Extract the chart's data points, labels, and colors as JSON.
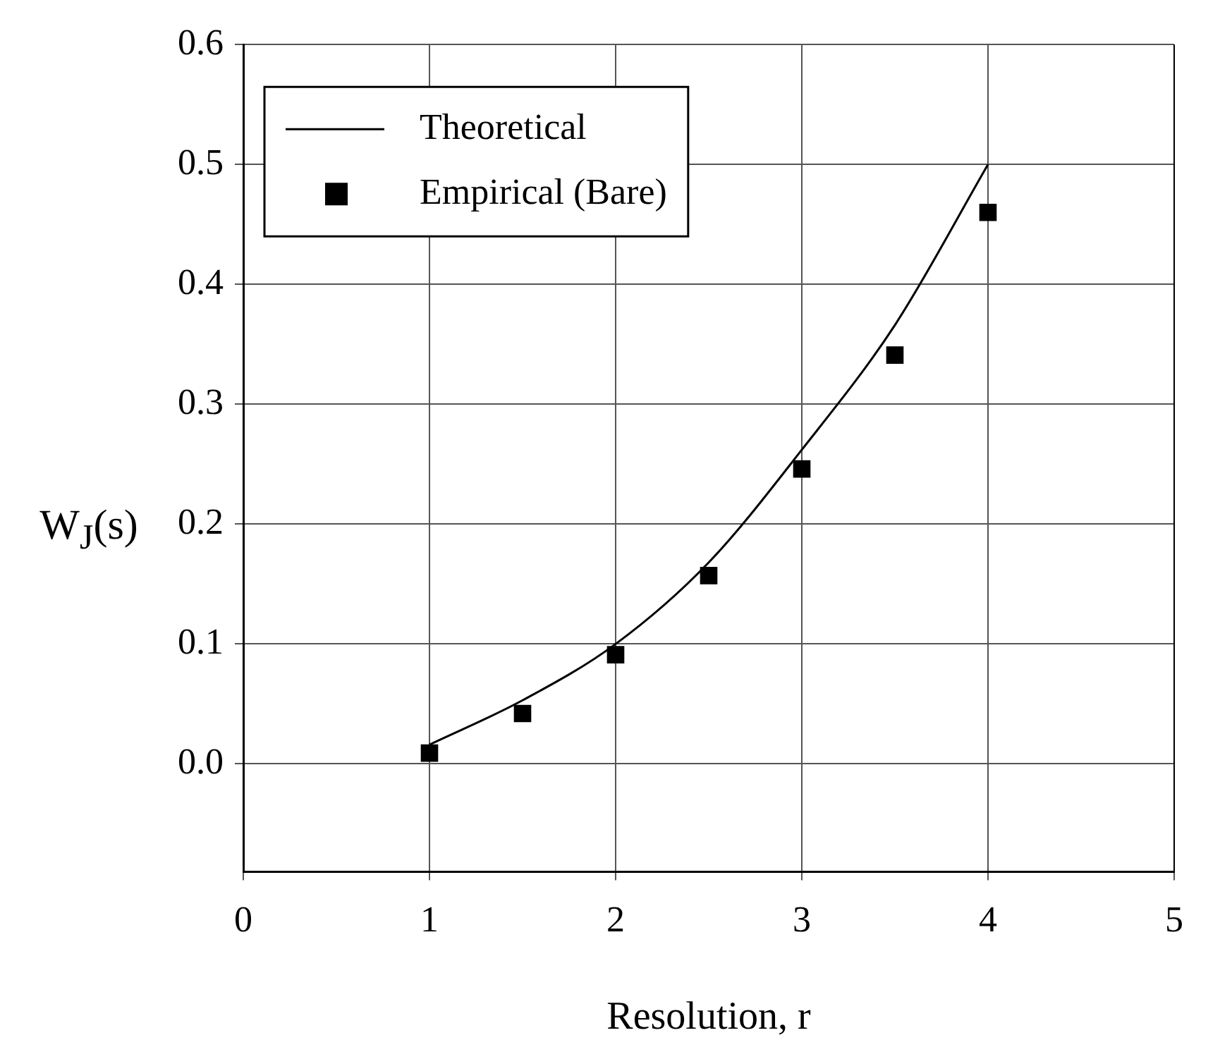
{
  "chart_data": {
    "type": "line",
    "xlabel": "Resolution, r",
    "ylabel": "W$_{J}$(s)",
    "xlim": [
      0,
      5
    ],
    "xticks": [
      0,
      1,
      2,
      3,
      4,
      5
    ],
    "ylim": [
      -0.09,
      0.6
    ],
    "yticks": [
      {
        "value": 0,
        "label": "0.0"
      },
      0.1,
      0.2,
      0.3,
      0.4,
      0.5,
      0.6
    ],
    "grid": true,
    "legend": "top left",
    "series": [
      {
        "name": "Theoretical",
        "color": "#000000",
        "marker": "none",
        "line_style": "solid",
        "x": [
          1,
          1.5,
          2,
          2.5,
          3,
          3.5,
          4
        ],
        "values": [
          0.016,
          0.053,
          0.1,
          0.168,
          0.262,
          0.366,
          0.5
        ]
      },
      {
        "name": "Empirical (Bare)",
        "type": "scatter",
        "color": "#000000",
        "marker": "square",
        "x": [
          1,
          1.5,
          2,
          2.5,
          3,
          3.5,
          4
        ],
        "values": [
          0.009,
          0.042,
          0.091,
          0.157,
          0.246,
          0.341,
          0.46
        ]
      }
    ]
  }
}
